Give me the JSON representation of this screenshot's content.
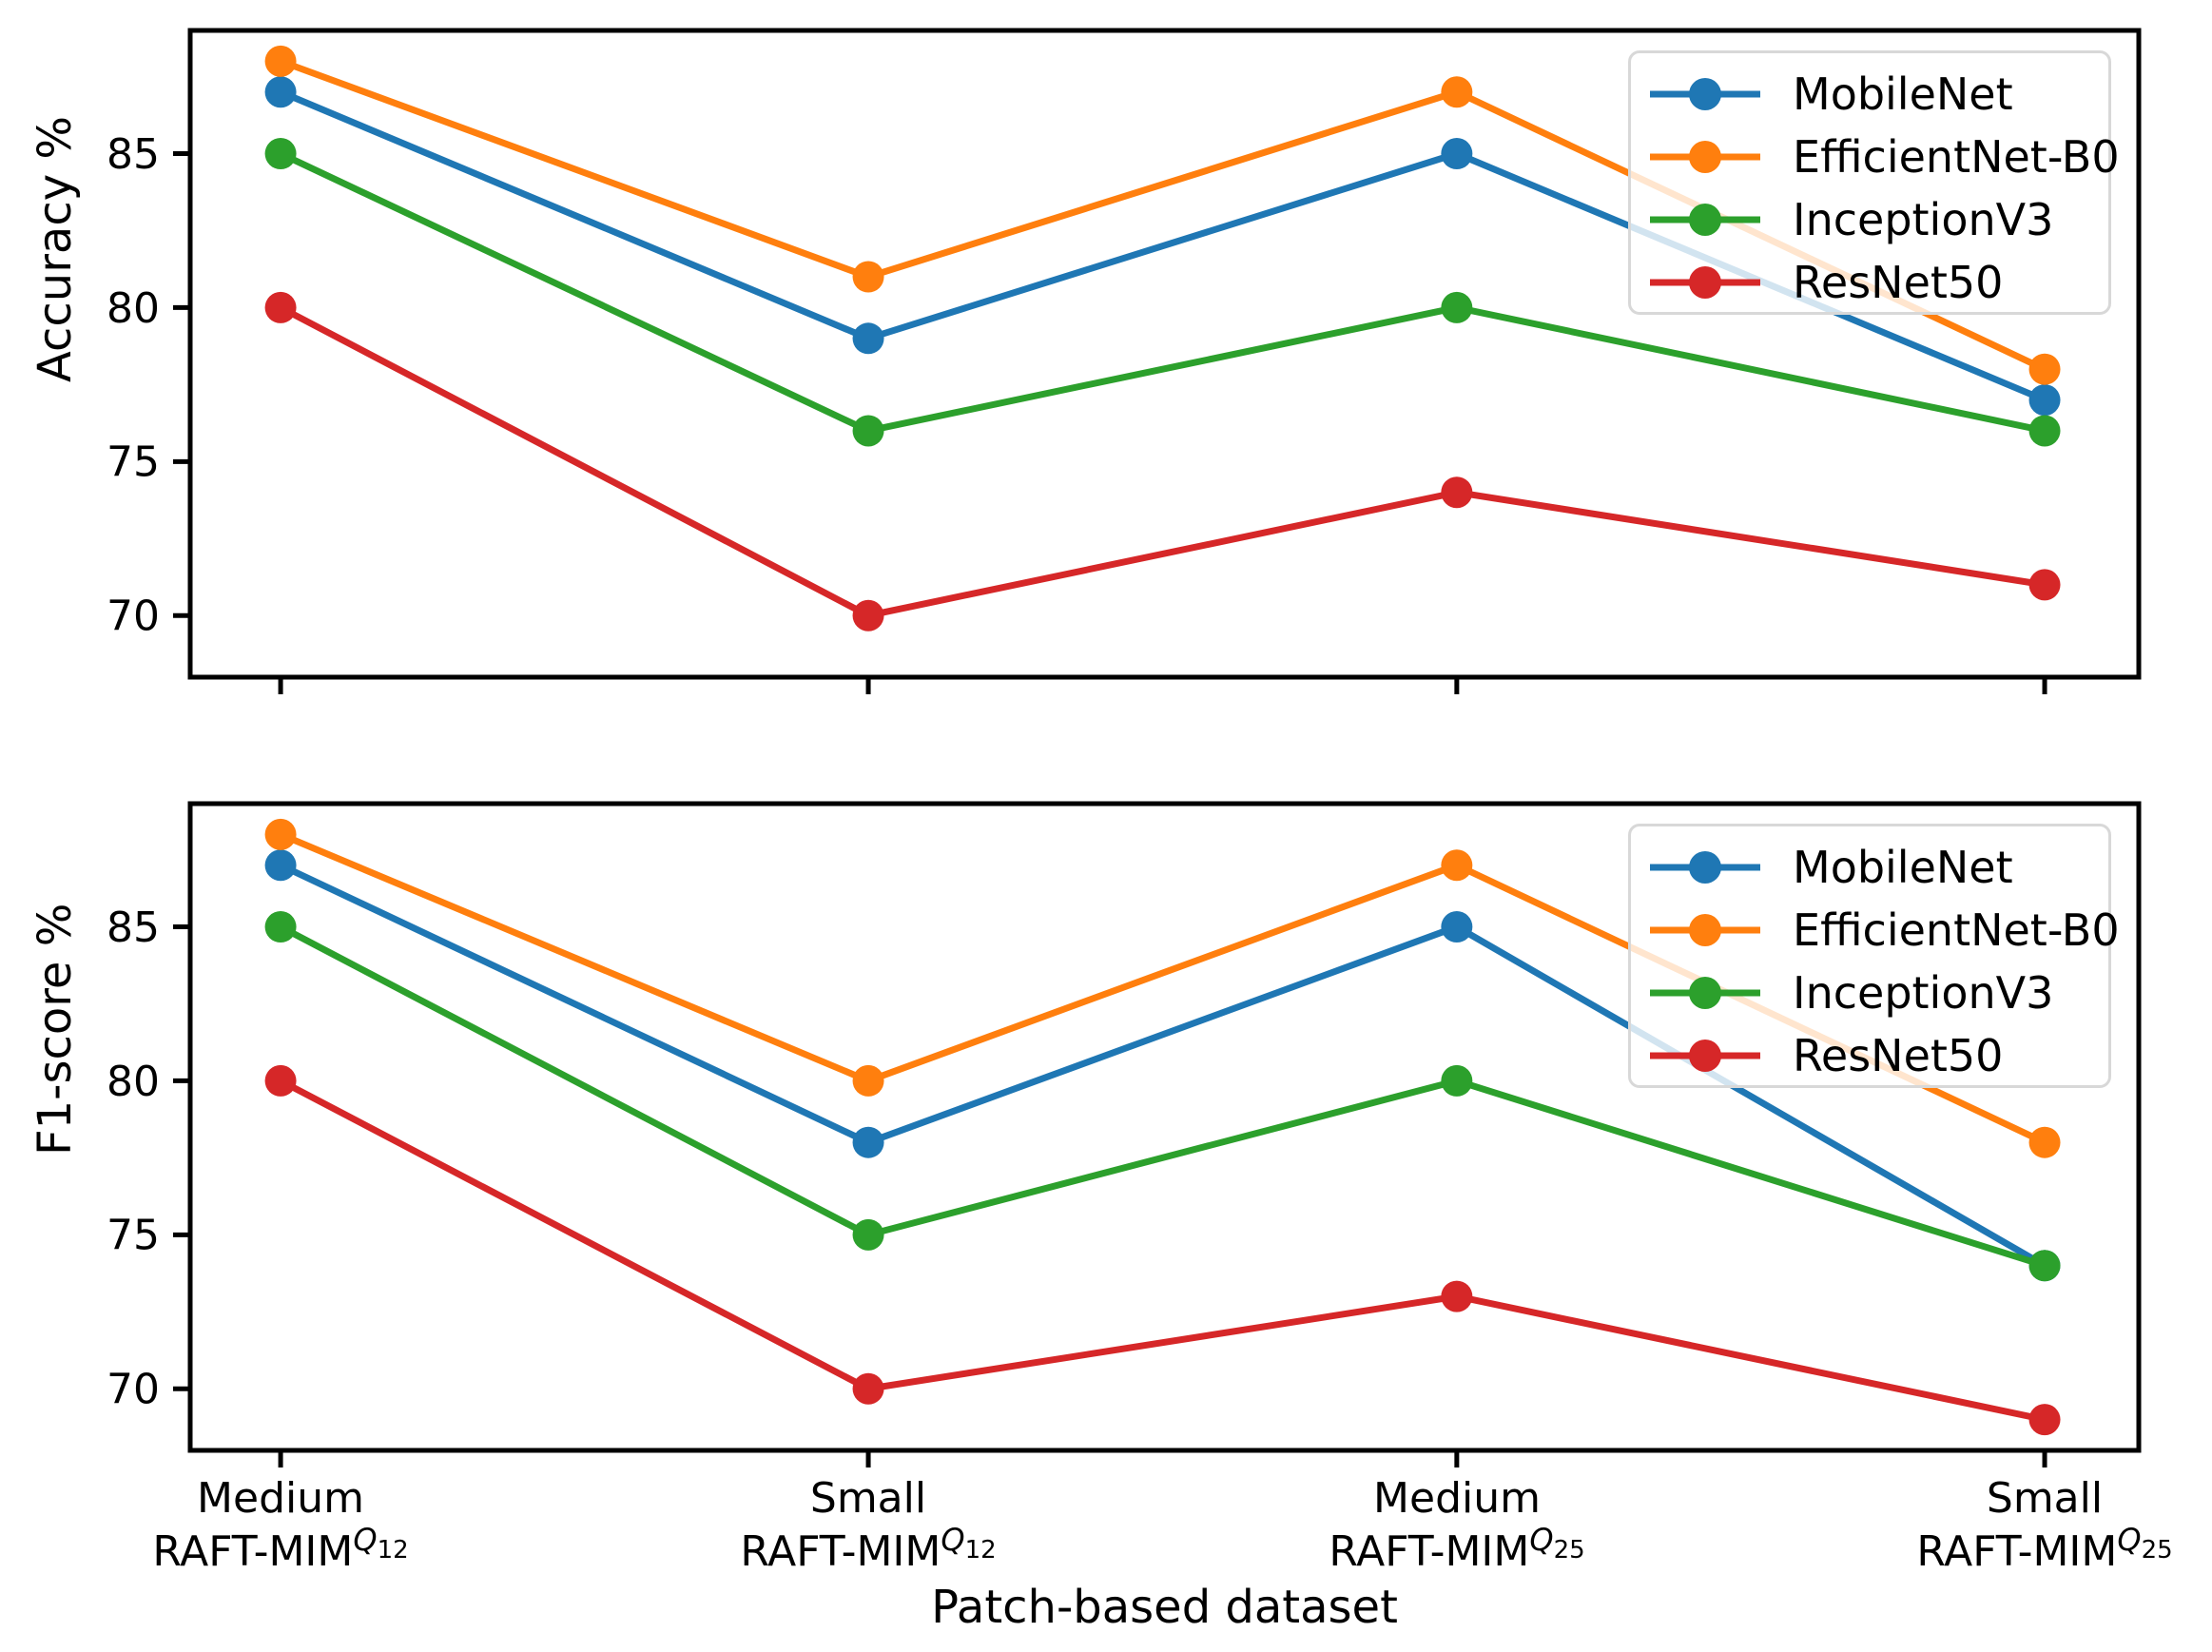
{
  "figure": {
    "xlabel": "Patch-based dataset",
    "background": "#ffffff",
    "spine_color": "#000000",
    "categories": [
      {
        "line1": "Medium",
        "base": "RAFT-MIM",
        "sup": "Q",
        "sub": "12"
      },
      {
        "line1": "Small",
        "base": "RAFT-MIM",
        "sup": "Q",
        "sub": "12"
      },
      {
        "line1": "Medium",
        "base": "RAFT-MIM",
        "sup": "Q",
        "sub": "25"
      },
      {
        "line1": "Small",
        "base": "RAFT-MIM",
        "sup": "Q",
        "sub": "25"
      }
    ]
  },
  "chart_data": [
    {
      "type": "line",
      "title": "",
      "ylabel": "Accuracy %",
      "xlabel": "Patch-based dataset",
      "categories": [
        "Medium RAFT-MIM^Q12",
        "Small RAFT-MIM^Q12",
        "Medium RAFT-MIM^Q25",
        "Small RAFT-MIM^Q25"
      ],
      "yticks": [
        70,
        75,
        80,
        85
      ],
      "ylim": [
        68,
        89
      ],
      "grid": false,
      "legend_position": "upper right",
      "series": [
        {
          "name": "MobileNet",
          "color": "#1f77b4",
          "values": [
            87,
            79,
            85,
            77
          ]
        },
        {
          "name": "EfficientNet-B0",
          "color": "#ff7f0e",
          "values": [
            88,
            81,
            87,
            78
          ]
        },
        {
          "name": "InceptionV3",
          "color": "#2ca02c",
          "values": [
            85,
            76,
            80,
            76
          ]
        },
        {
          "name": "ResNet50",
          "color": "#d62728",
          "values": [
            80,
            70,
            74,
            71
          ]
        }
      ]
    },
    {
      "type": "line",
      "title": "",
      "ylabel": "F1-score %",
      "xlabel": "Patch-based dataset",
      "categories": [
        "Medium RAFT-MIM^Q12",
        "Small RAFT-MIM^Q12",
        "Medium RAFT-MIM^Q25",
        "Small RAFT-MIM^Q25"
      ],
      "yticks": [
        70,
        75,
        80,
        85
      ],
      "ylim": [
        68,
        89
      ],
      "grid": false,
      "legend_position": "upper right",
      "series": [
        {
          "name": "MobileNet",
          "color": "#1f77b4",
          "values": [
            87,
            78,
            85,
            74
          ]
        },
        {
          "name": "EfficientNet-B0",
          "color": "#ff7f0e",
          "values": [
            88,
            80,
            87,
            78
          ]
        },
        {
          "name": "InceptionV3",
          "color": "#2ca02c",
          "values": [
            85,
            75,
            80,
            74
          ]
        },
        {
          "name": "ResNet50",
          "color": "#d62728",
          "values": [
            80,
            70,
            73,
            69
          ]
        }
      ]
    }
  ]
}
